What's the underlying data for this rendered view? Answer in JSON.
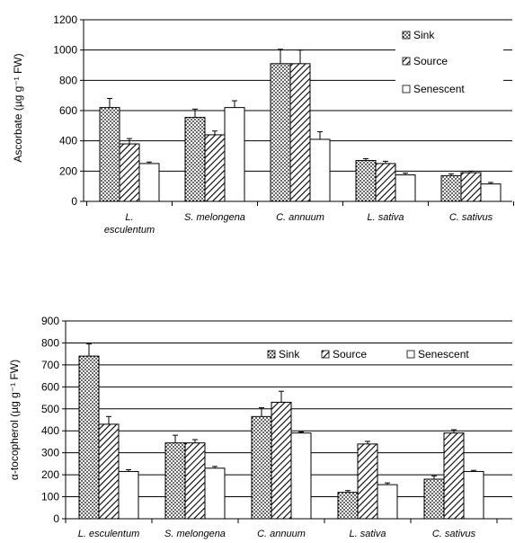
{
  "chart_data": [
    {
      "type": "bar",
      "ylabel": "Ascorbate (µg g⁻¹ FW)",
      "ylim": [
        0,
        1200
      ],
      "yticks": [
        0,
        200,
        400,
        600,
        800,
        1000,
        1200
      ],
      "grid": true,
      "categories": [
        "L. esculentum",
        "S. melongena",
        "C. annuum",
        "L. sativa",
        "C. sativus"
      ],
      "series": [
        {
          "name": "Sink",
          "pattern": "dots",
          "values": [
            620,
            555,
            910,
            270,
            170
          ],
          "errors": [
            60,
            55,
            95,
            12,
            12
          ]
        },
        {
          "name": "Source",
          "pattern": "hatch",
          "values": [
            380,
            440,
            910,
            250,
            190
          ],
          "errors": [
            35,
            25,
            90,
            15,
            10
          ]
        },
        {
          "name": "Senescent",
          "pattern": "white",
          "values": [
            250,
            620,
            410,
            175,
            115
          ],
          "errors": [
            10,
            45,
            50,
            12,
            10
          ]
        }
      ],
      "legend": "top-right"
    },
    {
      "type": "bar",
      "ylabel": "α-tocopherol (µg g⁻¹ FW)",
      "ylim": [
        0,
        900
      ],
      "yticks": [
        0,
        100,
        200,
        300,
        400,
        500,
        600,
        700,
        800,
        900
      ],
      "grid": true,
      "categories": [
        "L. esculentum",
        "S. melongena",
        "C. annuum",
        "L. sativa",
        "C. sativus"
      ],
      "series": [
        {
          "name": "Sink",
          "pattern": "dots",
          "values": [
            740,
            345,
            465,
            120,
            180
          ],
          "errors": [
            55,
            35,
            40,
            8,
            15
          ]
        },
        {
          "name": "Source",
          "pattern": "hatch",
          "values": [
            430,
            345,
            530,
            340,
            390
          ],
          "errors": [
            35,
            15,
            50,
            12,
            15
          ]
        },
        {
          "name": "Senescent",
          "pattern": "white",
          "values": [
            215,
            230,
            390,
            155,
            215
          ],
          "errors": [
            8,
            8,
            5,
            8,
            5
          ]
        }
      ],
      "legend": "top"
    }
  ]
}
